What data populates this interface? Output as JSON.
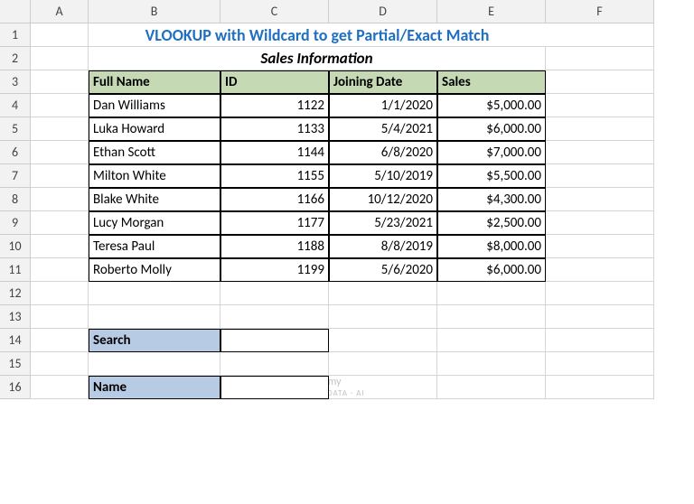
{
  "columns": [
    "A",
    "B",
    "C",
    "D",
    "E",
    "F"
  ],
  "rowCount": 16,
  "title": "VLOOKUP with Wildcard to get Partial/Exact Match",
  "subtitle": "Sales Information",
  "colors": {
    "title": "#1f6fc2",
    "tableHeaderBg": "#c5d9b5",
    "boxLabelBg": "#b8cbe4",
    "gridline": "#d4d4d4",
    "border": "#000000"
  },
  "table": {
    "headers": [
      "Full Name",
      "ID",
      "Joining Date",
      "Sales"
    ],
    "colAlign": [
      "left",
      "right",
      "right",
      "right"
    ],
    "rows": [
      [
        "Dan Williams",
        "1122",
        "1/1/2020",
        "$5,000.00"
      ],
      [
        "Luka Howard",
        "1133",
        "5/4/2021",
        "$6,000.00"
      ],
      [
        "Ethan Scott",
        "1144",
        "6/8/2020",
        "$7,000.00"
      ],
      [
        "Milton White",
        "1155",
        "5/10/2019",
        "$5,500.00"
      ],
      [
        "Blake White",
        "1166",
        "10/12/2020",
        "$4,300.00"
      ],
      [
        "Lucy Morgan",
        "1177",
        "5/23/2021",
        "$2,500.00"
      ],
      [
        "Teresa Paul",
        "1188",
        "8/8/2019",
        "$8,000.00"
      ],
      [
        "Roberto Molly",
        "1199",
        "5/6/2020",
        "$6,000.00"
      ]
    ]
  },
  "searchBox": {
    "label": "Search",
    "value": ""
  },
  "nameBox": {
    "label": "Name",
    "value": ""
  },
  "watermark": {
    "brand": "exceldemy",
    "tagline": "EXCEL · DATA · AI"
  }
}
